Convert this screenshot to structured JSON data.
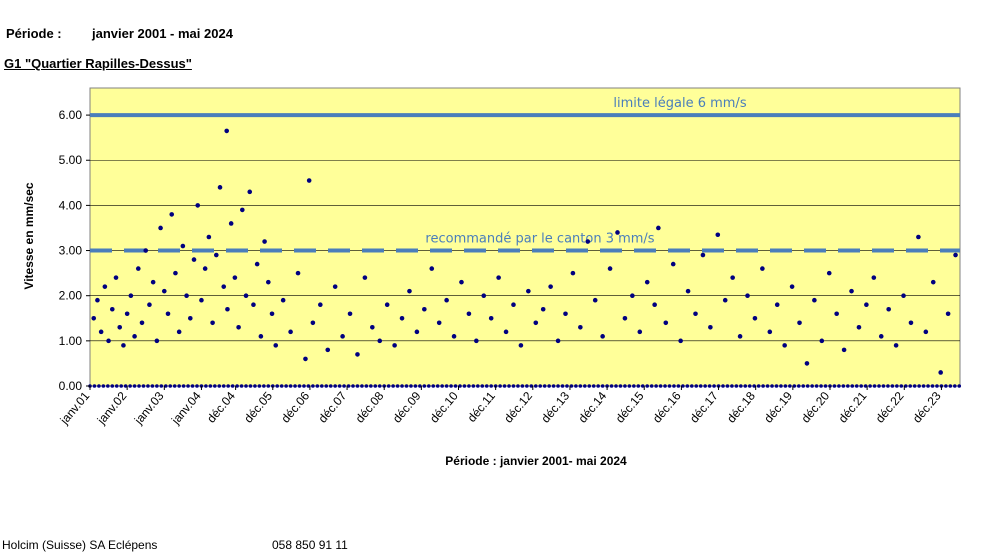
{
  "header": {
    "periode_label": "Période :",
    "periode_value": "janvier 2001 - mai 2024",
    "station_title": "G1 \"Quartier Rapilles-Dessus\""
  },
  "footer": {
    "company": "Holcim (Suisse) SA Eclépens",
    "phone": "058 850 91 11"
  },
  "chart_data": {
    "type": "scatter",
    "title": "",
    "ylabel": "Vitesse en mm/sec",
    "xlabel": "Période : janvier 2001- mai 2024",
    "ylim": [
      0,
      6.6
    ],
    "xlim": [
      2001.0,
      2024.42
    ],
    "y_ticks": [
      "0.00",
      "1.00",
      "2.00",
      "3.00",
      "4.00",
      "5.00",
      "6.00"
    ],
    "x_ticks": [
      {
        "label": "janv.01",
        "x": 2001.0
      },
      {
        "label": "janv.02",
        "x": 2002.0
      },
      {
        "label": "janv.03",
        "x": 2003.0
      },
      {
        "label": "janv.04",
        "x": 2004.0
      },
      {
        "label": "déc.04",
        "x": 2004.92
      },
      {
        "label": "déc.05",
        "x": 2005.92
      },
      {
        "label": "déc.06",
        "x": 2006.92
      },
      {
        "label": "déc.07",
        "x": 2007.92
      },
      {
        "label": "déc.08",
        "x": 2008.92
      },
      {
        "label": "déc.09",
        "x": 2009.92
      },
      {
        "label": "déc.10",
        "x": 2010.92
      },
      {
        "label": "déc.11",
        "x": 2011.92
      },
      {
        "label": "déc.12",
        "x": 2012.92
      },
      {
        "label": "déc.13",
        "x": 2013.92
      },
      {
        "label": "déc.14",
        "x": 2014.92
      },
      {
        "label": "déc.15",
        "x": 2015.92
      },
      {
        "label": "déc.16",
        "x": 2016.92
      },
      {
        "label": "déc.17",
        "x": 2017.92
      },
      {
        "label": "déc.18",
        "x": 2018.92
      },
      {
        "label": "déc.19",
        "x": 2019.92
      },
      {
        "label": "déc.20",
        "x": 2020.92
      },
      {
        "label": "déc.21",
        "x": 2021.92
      },
      {
        "label": "déc.22",
        "x": 2022.92
      },
      {
        "label": "déc.23",
        "x": 2023.92
      }
    ],
    "reference_lines": [
      {
        "label": "limite légale 6 mm/s",
        "y": 6.0,
        "style": "solid",
        "color": "#4a7ebb"
      },
      {
        "label": "recommandé par le canton 3 mm/s",
        "y": 3.0,
        "style": "dashed",
        "color": "#4a7ebb"
      }
    ],
    "grid": "horizontal",
    "background": "#ffff99",
    "point_color": "#000080",
    "series": [
      {
        "points": [
          [
            2001.1,
            1.5
          ],
          [
            2001.2,
            1.9
          ],
          [
            2001.3,
            1.2
          ],
          [
            2001.4,
            2.2
          ],
          [
            2001.5,
            1.0
          ],
          [
            2001.6,
            1.7
          ],
          [
            2001.7,
            2.4
          ],
          [
            2001.8,
            1.3
          ],
          [
            2001.9,
            0.9
          ],
          [
            2002.0,
            1.6
          ],
          [
            2002.1,
            2.0
          ],
          [
            2002.2,
            1.1
          ],
          [
            2002.3,
            2.6
          ],
          [
            2002.4,
            1.4
          ],
          [
            2002.5,
            3.0
          ],
          [
            2002.6,
            1.8
          ],
          [
            2002.7,
            2.3
          ],
          [
            2002.8,
            1.0
          ],
          [
            2002.9,
            3.5
          ],
          [
            2003.0,
            2.1
          ],
          [
            2003.1,
            1.6
          ],
          [
            2003.2,
            3.8
          ],
          [
            2003.3,
            2.5
          ],
          [
            2003.4,
            1.2
          ],
          [
            2003.5,
            3.1
          ],
          [
            2003.6,
            2.0
          ],
          [
            2003.7,
            1.5
          ],
          [
            2003.8,
            2.8
          ],
          [
            2003.9,
            4.0
          ],
          [
            2004.0,
            1.9
          ],
          [
            2004.1,
            2.6
          ],
          [
            2004.2,
            3.3
          ],
          [
            2004.3,
            1.4
          ],
          [
            2004.4,
            2.9
          ],
          [
            2004.5,
            4.4
          ],
          [
            2004.6,
            2.2
          ],
          [
            2004.68,
            5.65
          ],
          [
            2004.7,
            1.7
          ],
          [
            2004.8,
            3.6
          ],
          [
            2004.9,
            2.4
          ],
          [
            2005.0,
            1.3
          ],
          [
            2005.1,
            3.9
          ],
          [
            2005.2,
            2.0
          ],
          [
            2005.3,
            4.3
          ],
          [
            2005.4,
            1.8
          ],
          [
            2005.5,
            2.7
          ],
          [
            2005.6,
            1.1
          ],
          [
            2005.7,
            3.2
          ],
          [
            2005.8,
            2.3
          ],
          [
            2005.9,
            1.6
          ],
          [
            2006.0,
            0.9
          ],
          [
            2006.2,
            1.9
          ],
          [
            2006.4,
            1.2
          ],
          [
            2006.6,
            2.5
          ],
          [
            2006.8,
            0.6
          ],
          [
            2006.9,
            4.55
          ],
          [
            2007.0,
            1.4
          ],
          [
            2007.2,
            1.8
          ],
          [
            2007.4,
            0.8
          ],
          [
            2007.6,
            2.2
          ],
          [
            2007.8,
            1.1
          ],
          [
            2008.0,
            1.6
          ],
          [
            2008.2,
            0.7
          ],
          [
            2008.4,
            2.4
          ],
          [
            2008.6,
            1.3
          ],
          [
            2008.8,
            1.0
          ],
          [
            2009.0,
            1.8
          ],
          [
            2009.2,
            0.9
          ],
          [
            2009.4,
            1.5
          ],
          [
            2009.6,
            2.1
          ],
          [
            2009.8,
            1.2
          ],
          [
            2010.0,
            1.7
          ],
          [
            2010.2,
            2.6
          ],
          [
            2010.4,
            1.4
          ],
          [
            2010.6,
            1.9
          ],
          [
            2010.8,
            1.1
          ],
          [
            2011.0,
            2.3
          ],
          [
            2011.2,
            1.6
          ],
          [
            2011.4,
            1.0
          ],
          [
            2011.6,
            2.0
          ],
          [
            2011.8,
            1.5
          ],
          [
            2012.0,
            2.4
          ],
          [
            2012.2,
            1.2
          ],
          [
            2012.4,
            1.8
          ],
          [
            2012.6,
            0.9
          ],
          [
            2012.8,
            2.1
          ],
          [
            2013.0,
            1.4
          ],
          [
            2013.2,
            1.7
          ],
          [
            2013.4,
            2.2
          ],
          [
            2013.6,
            1.0
          ],
          [
            2013.8,
            1.6
          ],
          [
            2014.0,
            2.5
          ],
          [
            2014.2,
            1.3
          ],
          [
            2014.4,
            3.2
          ],
          [
            2014.6,
            1.9
          ],
          [
            2014.8,
            1.1
          ],
          [
            2015.0,
            2.6
          ],
          [
            2015.2,
            3.4
          ],
          [
            2015.4,
            1.5
          ],
          [
            2015.6,
            2.0
          ],
          [
            2015.8,
            1.2
          ],
          [
            2016.0,
            2.3
          ],
          [
            2016.2,
            1.8
          ],
          [
            2016.3,
            3.5
          ],
          [
            2016.5,
            1.4
          ],
          [
            2016.7,
            2.7
          ],
          [
            2016.9,
            1.0
          ],
          [
            2017.1,
            2.1
          ],
          [
            2017.3,
            1.6
          ],
          [
            2017.5,
            2.9
          ],
          [
            2017.7,
            1.3
          ],
          [
            2017.9,
            3.35
          ],
          [
            2018.1,
            1.9
          ],
          [
            2018.3,
            2.4
          ],
          [
            2018.5,
            1.1
          ],
          [
            2018.7,
            2.0
          ],
          [
            2018.9,
            1.5
          ],
          [
            2019.1,
            2.6
          ],
          [
            2019.3,
            1.2
          ],
          [
            2019.5,
            1.8
          ],
          [
            2019.7,
            0.9
          ],
          [
            2019.9,
            2.2
          ],
          [
            2020.1,
            1.4
          ],
          [
            2020.3,
            0.5
          ],
          [
            2020.5,
            1.9
          ],
          [
            2020.7,
            1.0
          ],
          [
            2020.9,
            2.5
          ],
          [
            2021.1,
            1.6
          ],
          [
            2021.3,
            0.8
          ],
          [
            2021.5,
            2.1
          ],
          [
            2021.7,
            1.3
          ],
          [
            2021.9,
            1.8
          ],
          [
            2022.1,
            2.4
          ],
          [
            2022.3,
            1.1
          ],
          [
            2022.5,
            1.7
          ],
          [
            2022.7,
            0.9
          ],
          [
            2022.9,
            2.0
          ],
          [
            2023.1,
            1.4
          ],
          [
            2023.3,
            3.3
          ],
          [
            2023.5,
            1.2
          ],
          [
            2023.7,
            2.3
          ],
          [
            2023.9,
            0.3
          ],
          [
            2024.1,
            1.6
          ],
          [
            2024.3,
            2.9
          ]
        ]
      }
    ]
  }
}
